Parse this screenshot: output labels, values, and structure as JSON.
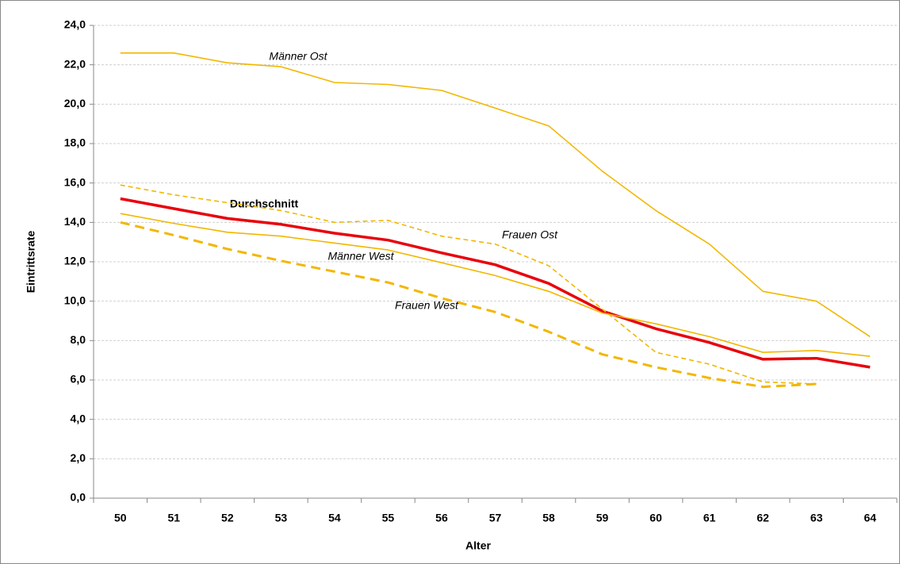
{
  "chart_data": {
    "type": "line",
    "x_label": "Alter",
    "y_label": "Eintrittsrate",
    "categories": [
      "50",
      "51",
      "52",
      "53",
      "54",
      "55",
      "56",
      "57",
      "58",
      "59",
      "60",
      "61",
      "62",
      "63",
      "64"
    ],
    "ylim": [
      0,
      24
    ],
    "yticks": [
      {
        "value": 0,
        "label": "0,0"
      },
      {
        "value": 2,
        "label": "2,0"
      },
      {
        "value": 4,
        "label": "4,0"
      },
      {
        "value": 6,
        "label": "6,0"
      },
      {
        "value": 8,
        "label": "8,0"
      },
      {
        "value": 10,
        "label": "10,0"
      },
      {
        "value": 12,
        "label": "12,0"
      },
      {
        "value": 14,
        "label": "14,0"
      },
      {
        "value": 16,
        "label": "16,0"
      },
      {
        "value": 18,
        "label": "18,0"
      },
      {
        "value": 20,
        "label": "20,0"
      },
      {
        "value": 22,
        "label": "22,0"
      },
      {
        "value": 24,
        "label": "24,0"
      }
    ],
    "grid": true,
    "series": [
      {
        "name": "Männer Ost",
        "color": "#f2b700",
        "line_style": "solid",
        "linewidth": 1.6,
        "values": [
          22.6,
          22.6,
          22.1,
          21.9,
          21.1,
          21.0,
          20.7,
          19.8,
          18.9,
          16.6,
          14.6,
          12.9,
          10.5,
          10.0,
          8.2
        ]
      },
      {
        "name": "Durchschnitt",
        "color": "#e8000b",
        "line_style": "solid",
        "linewidth": 3.5,
        "values": [
          15.2,
          14.7,
          14.2,
          13.9,
          13.45,
          13.1,
          12.45,
          11.85,
          10.9,
          9.5,
          8.6,
          7.9,
          7.05,
          7.1,
          6.65
        ]
      },
      {
        "name": "Frauen Ost",
        "color": "#f2b700",
        "line_style": "dashed",
        "linewidth": 1.6,
        "values": [
          15.9,
          15.4,
          15.0,
          14.6,
          14.0,
          14.1,
          13.3,
          12.9,
          11.8,
          9.6,
          7.4,
          6.8,
          5.9,
          5.8,
          null
        ]
      },
      {
        "name": "Männer West",
        "color": "#f2b700",
        "line_style": "solid",
        "linewidth": 1.6,
        "values": [
          14.45,
          13.95,
          13.5,
          13.3,
          12.95,
          12.6,
          11.95,
          11.3,
          10.5,
          9.4,
          8.85,
          8.2,
          7.4,
          7.5,
          7.2
        ]
      },
      {
        "name": "Frauen West",
        "color": "#f2b700",
        "line_style": "dashed",
        "linewidth": 3,
        "values": [
          14.0,
          13.35,
          12.65,
          12.05,
          11.5,
          10.95,
          10.15,
          9.45,
          8.45,
          7.3,
          6.65,
          6.1,
          5.65,
          5.8,
          null
        ]
      }
    ]
  }
}
